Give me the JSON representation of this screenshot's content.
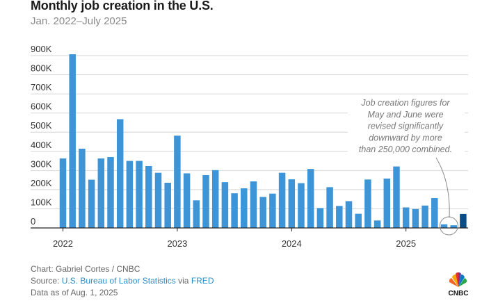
{
  "chart_data": {
    "type": "bar",
    "title": "Monthly job creation in the U.S.",
    "subtitle": "Jan. 2022–July 2025",
    "xlabel": "",
    "ylabel": "",
    "ylim": [
      0,
      900000
    ],
    "yticks": [
      0,
      100000,
      200000,
      300000,
      400000,
      500000,
      600000,
      700000,
      800000,
      900000
    ],
    "ytick_labels": [
      "0",
      "100K",
      "200K",
      "300K",
      "400K",
      "500K",
      "600K",
      "700K",
      "800K",
      "900K"
    ],
    "xtick_labels": [
      "2022",
      "2023",
      "2024",
      "2025"
    ],
    "grid": true,
    "categories": [
      "2022-01",
      "2022-02",
      "2022-03",
      "2022-04",
      "2022-05",
      "2022-06",
      "2022-07",
      "2022-08",
      "2022-09",
      "2022-10",
      "2022-11",
      "2022-12",
      "2023-01",
      "2023-02",
      "2023-03",
      "2023-04",
      "2023-05",
      "2023-06",
      "2023-07",
      "2023-08",
      "2023-09",
      "2023-10",
      "2023-11",
      "2023-12",
      "2024-01",
      "2024-02",
      "2024-03",
      "2024-04",
      "2024-05",
      "2024-06",
      "2024-07",
      "2024-08",
      "2024-09",
      "2024-10",
      "2024-11",
      "2024-12",
      "2025-01",
      "2025-02",
      "2025-03",
      "2025-04",
      "2025-05",
      "2025-06",
      "2025-07"
    ],
    "values": [
      363000,
      907000,
      414000,
      252000,
      363000,
      370000,
      568000,
      350000,
      350000,
      323000,
      288000,
      236000,
      482000,
      285000,
      144000,
      276000,
      302000,
      239000,
      181000,
      207000,
      243000,
      162000,
      179000,
      288000,
      254000,
      234000,
      308000,
      104000,
      213000,
      115000,
      140000,
      74000,
      253000,
      39000,
      258000,
      321000,
      107000,
      99000,
      117000,
      156000,
      19000,
      14000,
      73000
    ],
    "bar_color": "#3d95d8",
    "highlight_color": "#0b4d86",
    "highlight_index": 42,
    "annotation": {
      "lines": [
        "Job creation figures for",
        "May and June were",
        "revised significantly",
        "downward by more",
        "than 250,000 combined."
      ],
      "target_categories": [
        "2025-05",
        "2025-06"
      ]
    }
  },
  "footer": {
    "credit": "Chart: Gabriel Cortes / CNBC",
    "source_prefix": "Source: ",
    "source_link1": "U.S. Bureau of Labor Statistics",
    "source_via": " via ",
    "source_link2": "FRED",
    "data_as_of": "Data as of Aug. 1, 2025",
    "logo_text": "CNBC"
  }
}
